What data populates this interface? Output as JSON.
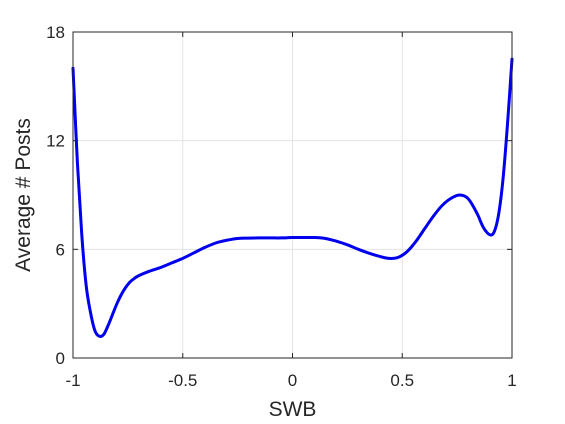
{
  "chart_data": {
    "type": "line",
    "xlabel": "SWB",
    "ylabel": "Average # Posts",
    "xlim": [
      -1,
      1
    ],
    "ylim": [
      0,
      18
    ],
    "xticks": [
      -1,
      -0.5,
      0,
      0.5,
      1
    ],
    "xtick_labels": [
      "-1",
      "-0.5",
      "0",
      "0.5",
      "1"
    ],
    "yticks": [
      0,
      6,
      12,
      18
    ],
    "ytick_labels": [
      "0",
      "6",
      "12",
      "18"
    ],
    "grid": true,
    "line_color": "#0000ee",
    "series": [
      {
        "x": [
          -1.0,
          -0.98,
          -0.96,
          -0.94,
          -0.92,
          -0.9,
          -0.88,
          -0.86,
          -0.84,
          -0.82,
          -0.8,
          -0.78,
          -0.76,
          -0.74,
          -0.72,
          -0.7,
          -0.65,
          -0.6,
          -0.55,
          -0.5,
          -0.45,
          -0.4,
          -0.35,
          -0.3,
          -0.25,
          -0.2,
          -0.15,
          -0.1,
          -0.05,
          0.0,
          0.05,
          0.1,
          0.15,
          0.2,
          0.25,
          0.3,
          0.35,
          0.4,
          0.44,
          0.48,
          0.52,
          0.56,
          0.6,
          0.64,
          0.68,
          0.72,
          0.76,
          0.8,
          0.84,
          0.87,
          0.9,
          0.92,
          0.94,
          0.96,
          0.98,
          1.0
        ],
        "y": [
          16.0,
          10.8,
          6.8,
          4.0,
          2.5,
          1.5,
          1.2,
          1.3,
          1.8,
          2.4,
          3.0,
          3.5,
          3.9,
          4.2,
          4.4,
          4.55,
          4.8,
          5.0,
          5.25,
          5.5,
          5.8,
          6.1,
          6.35,
          6.5,
          6.6,
          6.62,
          6.63,
          6.63,
          6.63,
          6.65,
          6.65,
          6.65,
          6.6,
          6.45,
          6.25,
          6.0,
          5.78,
          5.6,
          5.5,
          5.55,
          5.85,
          6.4,
          7.1,
          7.8,
          8.4,
          8.8,
          9.0,
          8.8,
          8.0,
          7.2,
          6.8,
          7.0,
          8.0,
          10.0,
          13.0,
          16.5
        ]
      }
    ]
  }
}
